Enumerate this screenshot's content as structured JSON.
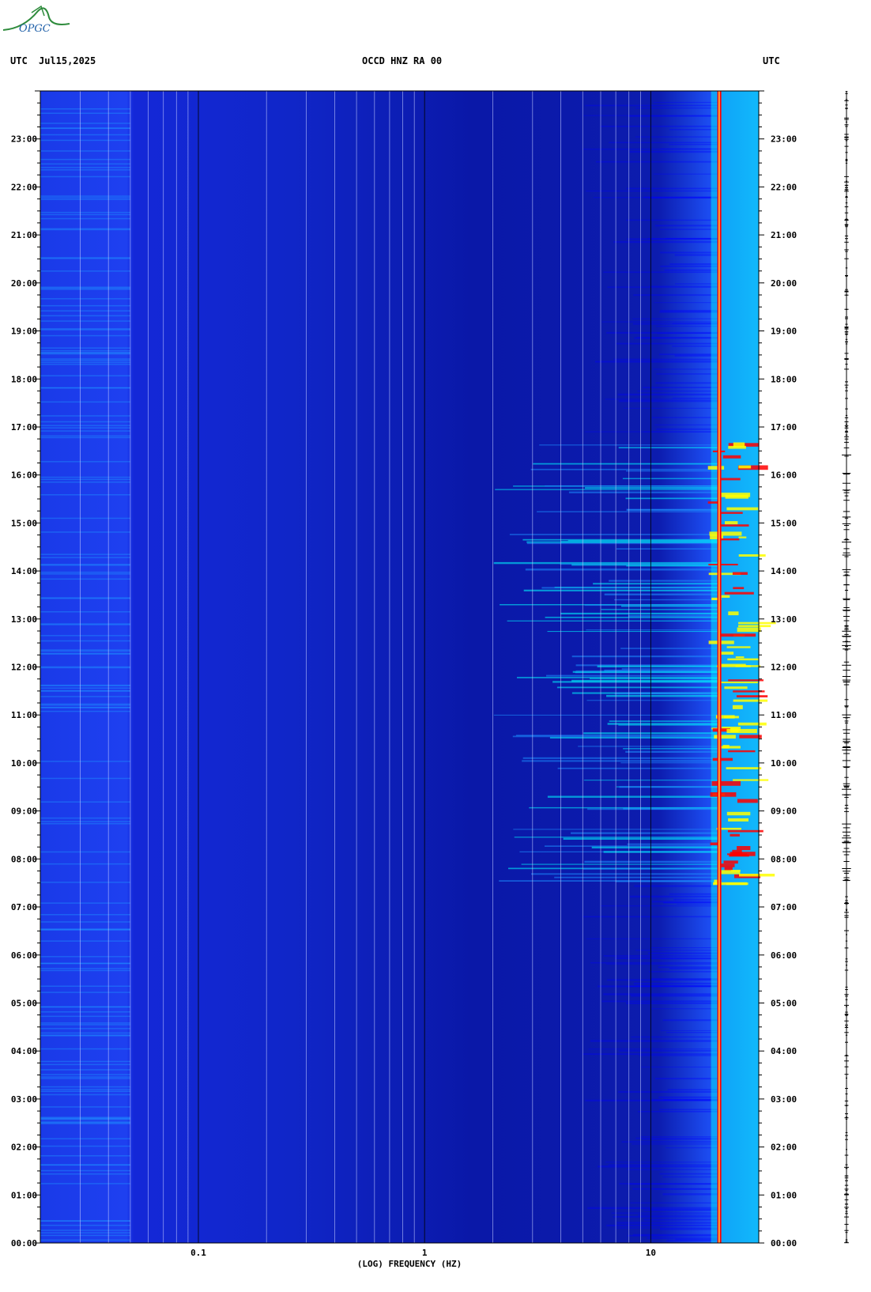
{
  "logo": {
    "text": "OPGC",
    "color": "#2e8b3c"
  },
  "header": {
    "left_tz": "UTC",
    "date": "Jul15,2025",
    "station": "OCCD HNZ RA 00",
    "right_tz": "UTC"
  },
  "chart_data": {
    "type": "heatmap",
    "title": "OCCD HNZ RA 00",
    "xlabel": "(LOG) FREQUENCY (HZ)",
    "ylabel": "",
    "xscale": "log",
    "xlim": [
      0.02,
      30
    ],
    "ylim_hours": [
      0,
      24
    ],
    "x_tick_labels": [
      "0.1",
      "1",
      "10"
    ],
    "x_tick_values": [
      0.1,
      1,
      10
    ],
    "y_tick_labels": [
      "00:00",
      "01:00",
      "02:00",
      "03:00",
      "04:00",
      "05:00",
      "06:00",
      "07:00",
      "08:00",
      "09:00",
      "10:00",
      "11:00",
      "12:00",
      "13:00",
      "14:00",
      "15:00",
      "16:00",
      "17:00",
      "18:00",
      "19:00",
      "20:00",
      "21:00",
      "22:00",
      "23:00"
    ],
    "y_tick_values": [
      0,
      1,
      2,
      3,
      4,
      5,
      6,
      7,
      8,
      9,
      10,
      11,
      12,
      13,
      14,
      15,
      16,
      17,
      18,
      19,
      20,
      21,
      22,
      23
    ],
    "colormap": [
      "#00008b",
      "#0000ff",
      "#1e90ff",
      "#00ffff",
      "#ffff00",
      "#ff0000",
      "#8b0000"
    ],
    "dominant_line_hz": 20,
    "energetic_periods_hours": [
      [
        7.5,
        16.8
      ]
    ],
    "grid": true
  }
}
